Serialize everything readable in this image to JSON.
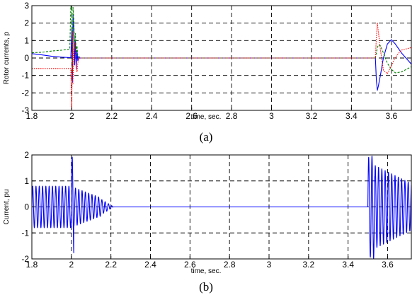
{
  "chart_data": [
    {
      "type": "line",
      "caption": "(a)",
      "xlabel": "time, sec.",
      "ylabel": "Rotor currents, p",
      "xlim": [
        1.8,
        3.7
      ],
      "ylim": [
        -3,
        3
      ],
      "xticks": [
        1.8,
        2,
        2.2,
        2.4,
        2.6,
        2.8,
        3,
        3.2,
        3.4,
        3.6
      ],
      "xtick_labels": [
        "1.8",
        "2",
        "2.2",
        "2.4",
        "2.6",
        "2.8",
        "3",
        "3.2",
        "3.4",
        "3.6"
      ],
      "yticks": [
        -3,
        -2,
        -1,
        0,
        1,
        2,
        3
      ],
      "ytick_labels": [
        "-3",
        "-2",
        "-1",
        "0",
        "1",
        "2",
        "3"
      ],
      "grid": true,
      "series": [
        {
          "color": "#0000ff",
          "style": "solid",
          "x": [
            1.8,
            1.85,
            1.9,
            1.95,
            1.995,
            2.0,
            2.003,
            2.006,
            2.01,
            2.014,
            2.018,
            2.022,
            2.026,
            2.03,
            2.035,
            2.04,
            2.1,
            3.5,
            3.52,
            3.525,
            3.53,
            3.535,
            3.545,
            3.56,
            3.58,
            3.6,
            3.62,
            3.65,
            3.7
          ],
          "y": [
            0.25,
            0.18,
            0.1,
            0.05,
            0.02,
            1.6,
            -1.4,
            2.5,
            1.7,
            -0.4,
            1.0,
            -0.6,
            0.4,
            -0.15,
            0.1,
            0.0,
            0.0,
            0.0,
            0.0,
            -1.3,
            -1.85,
            -1.6,
            -1.0,
            0.0,
            0.8,
            1.05,
            0.8,
            0.3,
            -0.35
          ]
        },
        {
          "color": "#008000",
          "style": "dashed",
          "x": [
            1.8,
            1.85,
            1.9,
            1.95,
            1.99,
            1.995,
            2.0,
            2.003,
            2.006,
            2.01,
            2.014,
            2.018,
            2.022,
            2.026,
            2.03,
            2.035,
            2.04,
            2.1,
            3.5,
            3.52,
            3.525,
            3.53,
            3.535,
            3.545,
            3.56,
            3.58,
            3.6,
            3.62,
            3.65,
            3.7
          ],
          "y": [
            0.3,
            0.33,
            0.4,
            0.45,
            0.5,
            3.0,
            2.7,
            -0.8,
            2.9,
            2.2,
            0.5,
            1.4,
            0.3,
            0.7,
            0.1,
            0.05,
            0.0,
            0.0,
            0.0,
            0.0,
            0.3,
            0.6,
            0.75,
            0.7,
            0.3,
            -0.3,
            -0.65,
            -0.85,
            -0.8,
            -0.5
          ]
        },
        {
          "color": "#ff0000",
          "style": "dotted",
          "x": [
            1.8,
            1.85,
            1.9,
            1.95,
            1.995,
            1.998,
            2.0,
            2.003,
            2.006,
            2.01,
            2.014,
            2.018,
            2.022,
            2.026,
            2.03,
            2.035,
            2.04,
            2.1,
            3.5,
            3.52,
            3.525,
            3.53,
            3.535,
            3.545,
            3.56,
            3.58,
            3.6,
            3.62,
            3.65,
            3.7
          ],
          "y": [
            -0.6,
            -0.6,
            -0.6,
            -0.6,
            -0.6,
            -2.5,
            -3.0,
            1.5,
            -1.5,
            0.5,
            0.9,
            0.2,
            -0.5,
            -0.8,
            -0.3,
            -0.05,
            0.0,
            0.0,
            0.0,
            0.0,
            1.2,
            2.0,
            1.5,
            0.5,
            -0.7,
            -0.9,
            -0.45,
            0.05,
            0.45,
            0.6
          ]
        }
      ]
    },
    {
      "type": "line",
      "caption": "(b)",
      "xlabel": "time, sec.",
      "ylabel": "Current, pu",
      "xlim": [
        1.8,
        3.72
      ],
      "ylim": [
        -2,
        2
      ],
      "xticks": [
        1.8,
        2,
        2.2,
        2.4,
        2.6,
        2.8,
        3,
        3.2,
        3.4,
        3.6
      ],
      "xtick_labels": [
        "1.8",
        "2",
        "2.2",
        "2.4",
        "2.6",
        "2.8",
        "3",
        "3.2",
        "3.4",
        "3.6"
      ],
      "yticks": [
        -2,
        -1,
        0,
        1,
        2
      ],
      "ytick_labels": [
        "-2",
        "-1",
        "0",
        "1",
        "2"
      ],
      "grid": true,
      "series": [
        {
          "color": "#0000ff",
          "style": "solid",
          "frequency_hz": 60,
          "segments": [
            {
              "t0": 1.8,
              "t1": 1.999,
              "amplitude_start": 0.8,
              "amplitude_end": 0.8
            },
            {
              "t0": 1.999,
              "t1": 2.012,
              "amplitude_start": 2.0,
              "amplitude_end": 1.8
            },
            {
              "t0": 2.012,
              "t1": 2.15,
              "amplitude_start": 0.75,
              "amplitude_end": 0.35
            },
            {
              "t0": 2.15,
              "t1": 2.21,
              "amplitude_start": 0.3,
              "amplitude_end": 0.02
            },
            {
              "t0": 2.21,
              "t1": 3.5,
              "amplitude_start": 0.0,
              "amplitude_end": 0.0
            },
            {
              "t0": 3.5,
              "t1": 3.535,
              "amplitude_start": 1.9,
              "amplitude_end": 2.0
            },
            {
              "t0": 3.535,
              "t1": 3.72,
              "amplitude_start": 1.6,
              "amplitude_end": 0.9
            }
          ]
        }
      ]
    }
  ]
}
